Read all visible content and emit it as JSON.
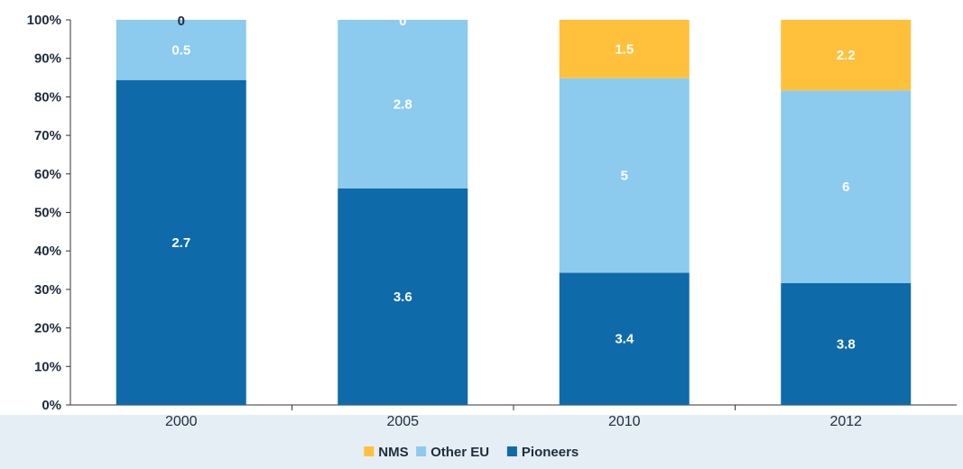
{
  "chart_data": {
    "type": "bar",
    "stacked": true,
    "percent_stacked": true,
    "categories": [
      "2000",
      "2005",
      "2010",
      "2012"
    ],
    "series": [
      {
        "name": "Pioneers",
        "color": "#0f6aaa",
        "values": [
          2.7,
          3.6,
          3.4,
          3.8
        ]
      },
      {
        "name": "Other EU",
        "color": "#8ccaee",
        "values": [
          0.5,
          2.8,
          5,
          6
        ]
      },
      {
        "name": "NMS",
        "color": "#ffc13b",
        "values": [
          0,
          0,
          1.5,
          2.2
        ]
      }
    ],
    "data_labels": [
      [
        "2.7",
        "3.6",
        "3.4",
        "3.8"
      ],
      [
        "0.5",
        "2.8",
        "5",
        "6"
      ],
      [
        "0",
        "0",
        "1.5",
        "2.2"
      ]
    ],
    "y_ticks": [
      "0%",
      "10%",
      "20%",
      "30%",
      "40%",
      "50%",
      "60%",
      "70%",
      "80%",
      "90%",
      "100%"
    ],
    "ylim": [
      0,
      100
    ],
    "legend_order": [
      "NMS",
      "Other EU",
      "Pioneers"
    ],
    "legend_position": "bottom-center",
    "grid": false
  }
}
